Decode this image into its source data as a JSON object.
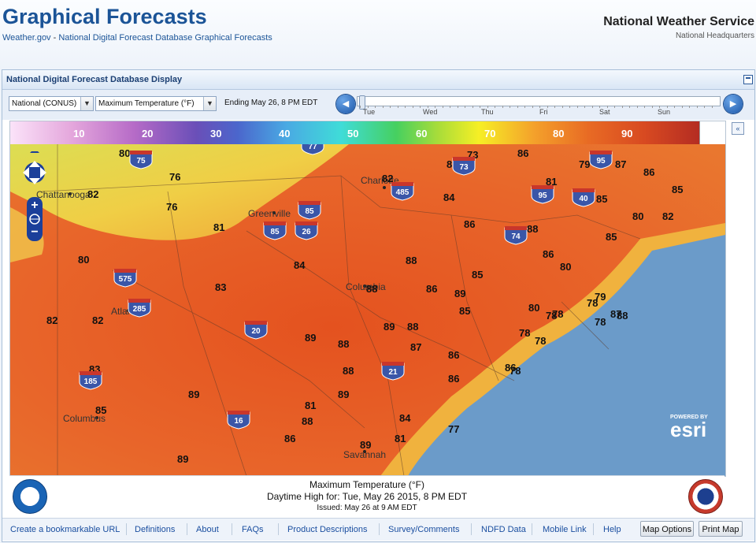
{
  "header": {
    "title": "Graphical Forecasts",
    "crumb_home": "Weather.gov",
    "crumb_sep": " - ",
    "crumb_page": "National Digital Forecast Database Graphical Forecasts",
    "org": "National Weather Service",
    "org_sub": "National Headquarters"
  },
  "panel": {
    "title": "National Digital Forecast Database Display"
  },
  "controls": {
    "region": "National (CONUS)",
    "element": "Maximum Temperature (°F)",
    "ending": "Ending May 26,   8 PM EDT",
    "prev_label": "◀",
    "next_label": "▶",
    "days": [
      "Tue",
      "Wed",
      "Thu",
      "Fri",
      "Sat",
      "Sun"
    ]
  },
  "legend": {
    "labels": [
      "10",
      "20",
      "30",
      "40",
      "50",
      "60",
      "70",
      "80",
      "90"
    ]
  },
  "map": {
    "cities": [
      "Chattanooga",
      "Greenville",
      "Charlotte",
      "Columbia",
      "Atlanta",
      "Columbus",
      "Savannah"
    ],
    "temps": [
      "80",
      "76",
      "76",
      "82",
      "76",
      "80",
      "85",
      "73",
      "86",
      "79",
      "87",
      "86",
      "82",
      "84",
      "86",
      "88",
      "85",
      "80",
      "81",
      "85",
      "81",
      "82",
      "85",
      "74",
      "86",
      "85",
      "88",
      "86",
      "84",
      "88",
      "89",
      "79",
      "83",
      "89",
      "88",
      "80",
      "78",
      "81",
      "88",
      "85",
      "82",
      "82",
      "89",
      "87",
      "86",
      "73",
      "88",
      "86",
      "83",
      "89",
      "88",
      "81",
      "85",
      "89",
      "86",
      "89",
      "89",
      "84",
      "81",
      "87",
      "88",
      "78",
      "78",
      "80",
      "78",
      "78",
      "78",
      "77",
      "78",
      "86"
    ],
    "highways": [
      "75",
      "85",
      "26",
      "85",
      "77",
      "485",
      "73",
      "40",
      "95",
      "74",
      "575",
      "285",
      "20",
      "16",
      "185",
      "21",
      "95"
    ],
    "attribution_top": "POWERED BY",
    "attribution": "esri"
  },
  "caption": {
    "element": "Maximum Temperature (°F)",
    "period": "Daytime High for: Tue, May 26 2015,   8 PM EDT",
    "issued": "Issued: May 26 at 9 AM EDT"
  },
  "links": {
    "bookmark": "Create a bookmarkable URL",
    "definitions": "Definitions",
    "about": "About",
    "faqs": "FAQs",
    "product": "Product Descriptions",
    "survey": "Survey/Comments",
    "ndfd": "NDFD Data",
    "mobile": "Mobile Link",
    "help": "Help",
    "map_options": "Map Options",
    "print_map": "Print Map"
  },
  "colors": {
    "brand": "#1b5497",
    "land_hot": "#e6602a",
    "land_warm": "#f3b247",
    "coast": "#e8a835",
    "ocean": "#6b9bc9"
  }
}
